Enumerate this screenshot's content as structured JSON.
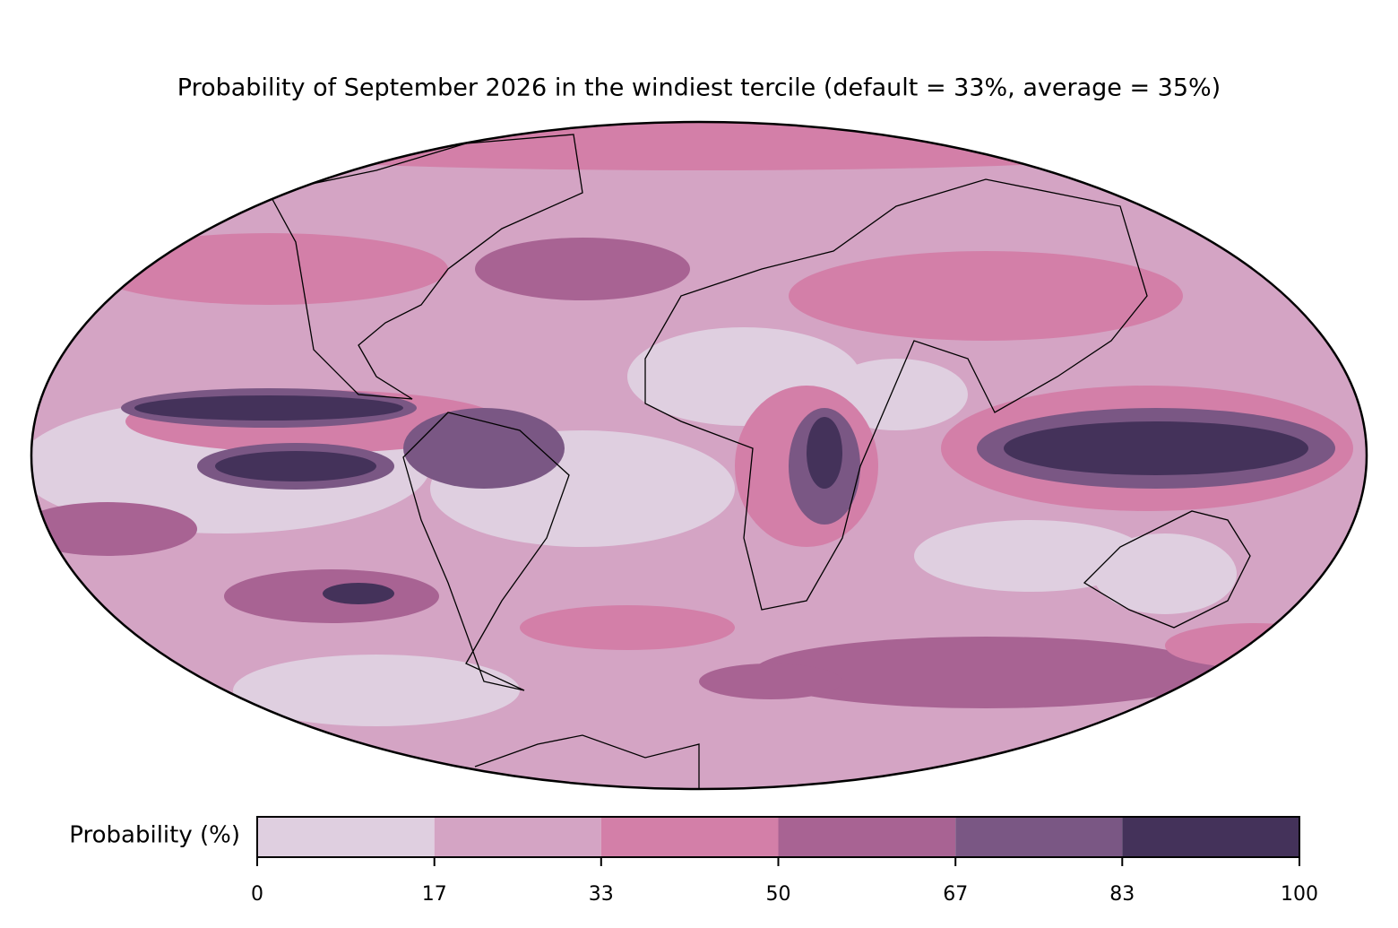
{
  "title": "Probability of September 2026 in the windiest tercile (default = 33%, average = 35%)",
  "colorbar": {
    "label": "Probability (%)",
    "ticks": [
      0,
      17,
      33,
      50,
      67,
      83,
      100
    ],
    "colors": [
      "#dfcfe0",
      "#d4a4c4",
      "#d37fa8",
      "#a86393",
      "#7a5784",
      "#44325a"
    ]
  }
}
